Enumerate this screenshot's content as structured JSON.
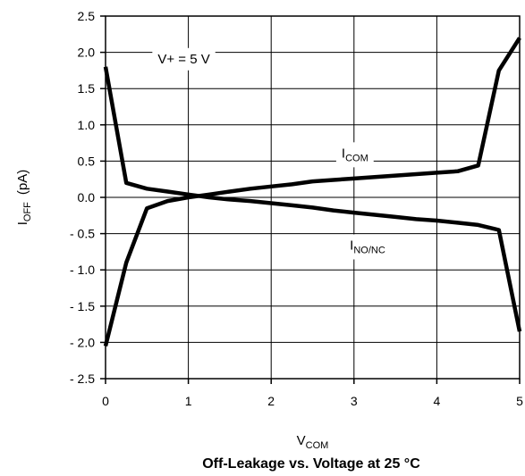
{
  "chart_data": {
    "type": "line",
    "title": "Off-Leakage vs. Voltage at 25 °C",
    "xlabel": {
      "main": "V",
      "sub": "COM"
    },
    "ylabel": {
      "main": "I",
      "sub": "OFF",
      "unit": "(pA)"
    },
    "xlim": [
      0,
      5
    ],
    "ylim": [
      -2.5,
      2.5
    ],
    "xticks": [
      0,
      1,
      2,
      3,
      4,
      5
    ],
    "xtick_labels": [
      "0",
      "1",
      "2",
      "3",
      "4",
      "5"
    ],
    "yticks": [
      2.5,
      2.0,
      1.5,
      1.0,
      0.5,
      0.0,
      -0.5,
      -1.0,
      -1.5,
      -2.0,
      -2.5
    ],
    "ytick_labels": [
      "2.5",
      "2.0",
      "1.5",
      "1.0",
      "0.5",
      "0.0",
      "- 0.5",
      "- 1.0",
      "- 1.5",
      "- 2.0",
      "- 2.5"
    ],
    "grid": true,
    "annotations": [
      {
        "text": "V+ = 5 V",
        "x": 0.63,
        "y": 1.85
      },
      {
        "text": "I",
        "sub": "COM",
        "x": 2.85,
        "y": 0.55
      },
      {
        "text": "I",
        "sub": "NO/NC",
        "x": 2.95,
        "y": -0.72
      }
    ],
    "series": [
      {
        "name": "ICOM",
        "x": [
          0,
          0.25,
          0.5,
          0.75,
          1.0,
          1.25,
          1.5,
          1.75,
          2.0,
          2.25,
          2.5,
          2.75,
          3.0,
          3.25,
          3.5,
          3.75,
          4.0,
          4.25,
          4.5,
          4.75,
          5.0
        ],
        "y": [
          -2.05,
          -0.9,
          -0.15,
          -0.05,
          0.0,
          0.04,
          0.08,
          0.12,
          0.15,
          0.18,
          0.22,
          0.24,
          0.26,
          0.28,
          0.3,
          0.32,
          0.34,
          0.36,
          0.44,
          1.75,
          2.2
        ]
      },
      {
        "name": "INO/NC",
        "x": [
          0,
          0.25,
          0.5,
          0.75,
          1.0,
          1.25,
          1.5,
          1.75,
          2.0,
          2.25,
          2.5,
          2.75,
          3.0,
          3.25,
          3.5,
          3.75,
          4.0,
          4.25,
          4.5,
          4.75,
          5.0
        ],
        "y": [
          1.8,
          0.2,
          0.12,
          0.08,
          0.04,
          0.0,
          -0.03,
          -0.05,
          -0.08,
          -0.11,
          -0.14,
          -0.18,
          -0.21,
          -0.24,
          -0.27,
          -0.3,
          -0.32,
          -0.35,
          -0.38,
          -0.45,
          -1.85
        ]
      }
    ]
  }
}
